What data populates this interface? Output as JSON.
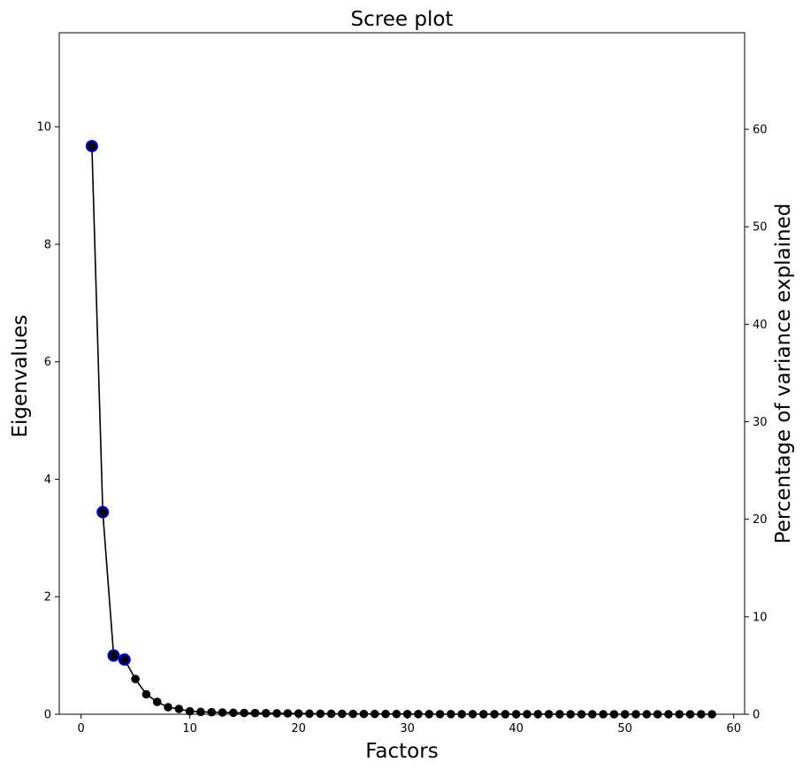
{
  "chart_data": {
    "type": "line",
    "title": "Scree plot",
    "xlabel": "Factors",
    "ylabel": "Eigenvalues",
    "y2label": "Percentage of variance explained",
    "xlim": [
      -2,
      61
    ],
    "ylim": [
      0,
      11.6
    ],
    "y2lim": [
      0,
      69.9
    ],
    "xticks": [
      0,
      10,
      20,
      30,
      40,
      50,
      60
    ],
    "yticks": [
      0,
      2,
      4,
      6,
      8,
      10
    ],
    "y2ticks": [
      0,
      10,
      20,
      30,
      40,
      50,
      60
    ],
    "grid": false,
    "line_color": "#000000",
    "marker_color": "#000000",
    "highlight_color": "#0000cc",
    "highlighted_factors": [
      1,
      2,
      3,
      4
    ],
    "series": [
      {
        "x": [
          1,
          2,
          3,
          4,
          5,
          6,
          7,
          8,
          9,
          10,
          11,
          12,
          13,
          14,
          15,
          16,
          17,
          18,
          19,
          20,
          21,
          22,
          23,
          24,
          25,
          26,
          27,
          28,
          29,
          30,
          31,
          32,
          33,
          34,
          35,
          36,
          37,
          38,
          39,
          40,
          41,
          42,
          43,
          44,
          45,
          46,
          47,
          48,
          49,
          50,
          51,
          52,
          53,
          54,
          55,
          56,
          57,
          58
        ],
        "values": [
          9.67,
          3.44,
          1.0,
          0.93,
          0.6,
          0.34,
          0.21,
          0.12,
          0.09,
          0.05,
          0.04,
          0.035,
          0.03,
          0.025,
          0.022,
          0.02,
          0.018,
          0.016,
          0.015,
          0.012,
          0.01,
          0.009,
          0.008,
          0.007,
          0.006,
          0.005,
          0.005,
          0.004,
          0.004,
          0.003,
          0.003,
          0.003,
          0.002,
          0.002,
          0.002,
          0.002,
          0.001,
          0.001,
          0.001,
          0.001,
          0.001,
          0.001,
          0.001,
          0.001,
          0,
          0,
          0,
          0,
          0,
          0,
          0,
          0,
          0,
          0,
          0,
          0,
          0,
          0
        ]
      }
    ]
  }
}
